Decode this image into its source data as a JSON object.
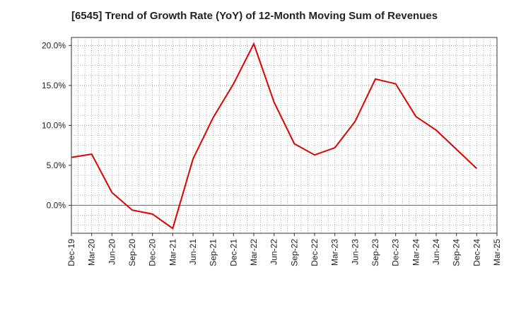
{
  "chart_data": {
    "type": "line",
    "title": "[6545]  Trend of Growth Rate (YoY) of 12-Month Moving Sum of Revenues",
    "xlabel": "",
    "ylabel": "",
    "x_tick_labels": [
      "Dec-19",
      "Mar-20",
      "Jun-20",
      "Sep-20",
      "Dec-20",
      "Mar-21",
      "Jun-21",
      "Sep-21",
      "Dec-21",
      "Mar-22",
      "Jun-22",
      "Sep-22",
      "Dec-22",
      "Mar-23",
      "Jun-23",
      "Sep-23",
      "Dec-23",
      "Mar-24",
      "Jun-24",
      "Sep-24",
      "Dec-24",
      "Mar-25"
    ],
    "y_tick_labels": [
      "20.0%",
      "15.0%",
      "10.0%",
      "5.0%",
      "0.0%"
    ],
    "y_ticks": [
      20,
      15,
      10,
      5,
      0
    ],
    "ylim": [
      -3.5,
      21
    ],
    "grid": true,
    "series": [
      {
        "color": "#e00000",
        "x": [
          "Dec-19",
          "Mar-20",
          "Jun-20",
          "Sep-20",
          "Dec-20",
          "Mar-21",
          "Jun-21",
          "Sep-21",
          "Dec-21",
          "Mar-22",
          "Jun-22",
          "Sep-22",
          "Dec-22",
          "Mar-23",
          "Jun-23",
          "Sep-23",
          "Dec-23",
          "Mar-24",
          "Jun-24",
          "Sep-24",
          "Dec-24"
        ],
        "values": [
          6.0,
          6.4,
          1.6,
          -0.6,
          -1.1,
          -2.9,
          5.8,
          11.0,
          15.2,
          20.2,
          12.9,
          7.7,
          6.3,
          7.2,
          10.5,
          15.8,
          15.2,
          11.1,
          9.4,
          7.0,
          4.6
        ]
      }
    ]
  }
}
